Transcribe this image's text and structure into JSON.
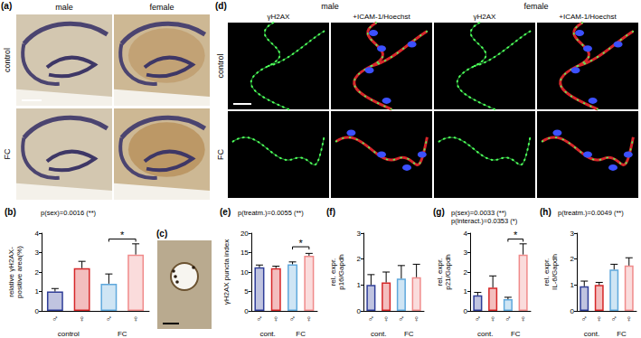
{
  "chart_data": [
    {
      "panel_label": "(b)",
      "type": "bar",
      "title": "p(sex)=0.0016 (**)",
      "y_label": [
        "relative γH2AX-",
        "positive area(%)"
      ],
      "categories": [
        "♂",
        "♀",
        "♂",
        "♀"
      ],
      "groups": [
        "control",
        "FC"
      ],
      "values": [
        1.0,
        2.2,
        1.4,
        2.9
      ],
      "errors": [
        0.15,
        0.35,
        0.5,
        0.55
      ],
      "colors": [
        "#2e3d98",
        "#d62728",
        "#5fa8dc",
        "#f08a8a"
      ],
      "ylim": [
        0,
        4
      ],
      "yticks": [
        0,
        1,
        2,
        3,
        4
      ],
      "significance": [
        {
          "from": 2,
          "to": 3,
          "y": 3.7,
          "label": "*"
        }
      ]
    },
    {
      "panel_label": "(e)",
      "type": "bar",
      "title": "p(treatm.)=0.0055 (**)",
      "y_label": [
        "γH2AX puncta index"
      ],
      "categories": [
        "♂",
        "♀",
        "♂",
        "♀"
      ],
      "groups": [
        "cont.",
        "FC"
      ],
      "values": [
        11.2,
        11.0,
        12.0,
        14.2
      ],
      "errors": [
        0.6,
        0.5,
        0.6,
        0.6
      ],
      "colors": [
        "#2e3d98",
        "#d62728",
        "#5fa8dc",
        "#f08a8a"
      ],
      "ylim": [
        0,
        20
      ],
      "yticks": [
        0,
        5,
        10,
        15,
        20
      ],
      "significance": [
        {
          "from": 2,
          "to": 3,
          "y": 16.5,
          "label": "*"
        }
      ]
    },
    {
      "panel_label": "(f)",
      "type": "bar",
      "y_label": [
        "rel. expr.",
        "p16/Gapdh"
      ],
      "categories": [
        "♂",
        "♀",
        "♂",
        "♀"
      ],
      "groups": [
        "cont.",
        "FC"
      ],
      "values": [
        1.0,
        1.1,
        1.25,
        1.3
      ],
      "errors": [
        0.4,
        0.4,
        0.5,
        0.5
      ],
      "colors": [
        "#2e3d98",
        "#d62728",
        "#5fa8dc",
        "#f08a8a"
      ],
      "ylim": [
        0,
        3
      ],
      "yticks": [
        0,
        1,
        2,
        3
      ]
    },
    {
      "panel_label": "(g)",
      "type": "bar",
      "title": [
        "p(sex)=0.0033 (**)",
        "p(interact.)=0.0353 (*)"
      ],
      "y_label": [
        "rel. expr.",
        "p21/Gapdh"
      ],
      "categories": [
        "♂",
        "♀",
        "♂",
        "♀"
      ],
      "groups": [
        "cont.",
        "FC"
      ],
      "values": [
        0.8,
        1.2,
        0.6,
        2.9
      ],
      "errors": [
        0.15,
        0.6,
        0.1,
        0.55
      ],
      "colors": [
        "#2e3d98",
        "#d62728",
        "#5fa8dc",
        "#f08a8a"
      ],
      "ylim": [
        0,
        4
      ],
      "yticks": [
        0,
        1,
        2,
        3,
        4
      ],
      "significance": [
        {
          "from": 2,
          "to": 3,
          "y": 3.7,
          "label": "*"
        }
      ]
    },
    {
      "panel_label": "(h)",
      "type": "bar",
      "title": "p(treatm.)=0.0049 (**)",
      "y_label": [
        "rel. expr.",
        "IL-6/Gapdh"
      ],
      "categories": [
        "♂",
        "♀",
        "♂",
        "♀"
      ],
      "groups": [
        "cont.",
        "FC"
      ],
      "values": [
        0.95,
        1.0,
        1.6,
        1.75
      ],
      "errors": [
        0.2,
        0.1,
        0.2,
        0.3
      ],
      "colors": [
        "#2e3d98",
        "#d62728",
        "#5fa8dc",
        "#f08a8a"
      ],
      "ylim": [
        0,
        3
      ],
      "yticks": [
        0,
        1,
        2,
        3
      ]
    }
  ],
  "images": {
    "a": {
      "panel_label": "(a)",
      "columns": [
        "male",
        "female"
      ],
      "rows": [
        "control",
        "FC"
      ]
    },
    "c": {
      "panel_label": "(c)"
    },
    "d": {
      "panel_label": "(d)",
      "columns": [
        "male",
        "female"
      ],
      "subcolumns": [
        "γH2AX",
        "+ICAM-1/Hoechst",
        "γH2AX",
        "+ICAM-1/Hoechst"
      ],
      "rows": [
        "control",
        "FC"
      ]
    }
  }
}
